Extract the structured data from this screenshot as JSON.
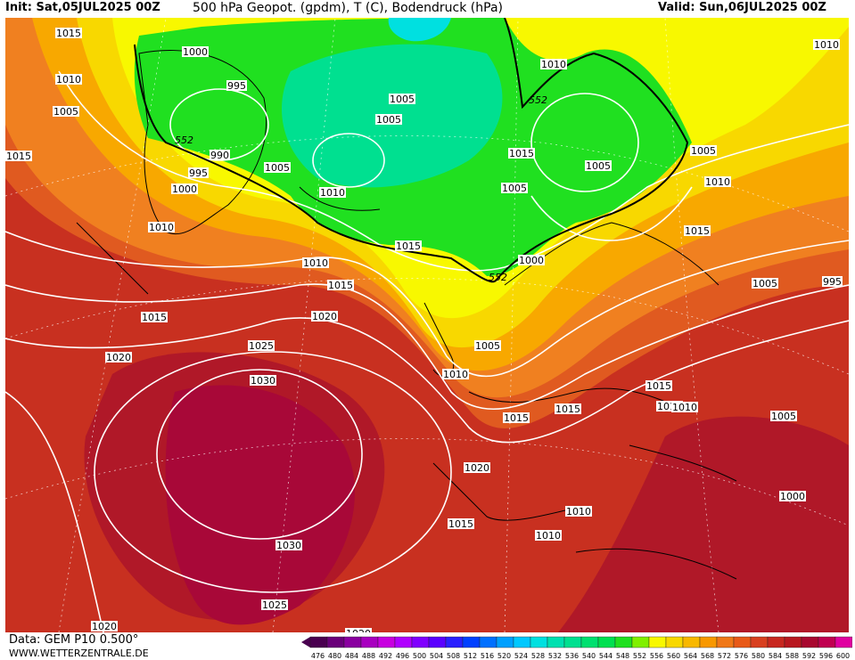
{
  "header": {
    "init": "Init: Sat,05JUL2025 00Z",
    "title": "500 hPa Geopot. (gpdm), T (C), Bodendruck (hPa)",
    "valid": "Valid: Sun,06JUL2025 00Z"
  },
  "footer": {
    "source": "Data: GEM P10 0.500°",
    "website": "WWW.WETTERZENTRALE.DE"
  },
  "colorbar": {
    "labels": [
      "476",
      "480",
      "484",
      "488",
      "492",
      "496",
      "500",
      "504",
      "508",
      "512",
      "516",
      "520",
      "524",
      "528",
      "532",
      "536",
      "540",
      "544",
      "548",
      "552",
      "556",
      "560",
      "564",
      "568",
      "572",
      "576",
      "580",
      "584",
      "588",
      "592",
      "596",
      "600"
    ],
    "colors": [
      "#4a0050",
      "#6a007a",
      "#8a00a0",
      "#a800c0",
      "#c800e0",
      "#b000ff",
      "#8000ff",
      "#5a00ff",
      "#2a20ff",
      "#0040ff",
      "#0070ff",
      "#00a0ff",
      "#00c8ff",
      "#00e0e0",
      "#00e0b0",
      "#00e090",
      "#00e070",
      "#00e050",
      "#20e020",
      "#80f000",
      "#f8f800",
      "#f8d800",
      "#f8b800",
      "#f89800",
      "#f07818",
      "#e85a18",
      "#d84020",
      "#c82820",
      "#b81820",
      "#a80830",
      "#c00050",
      "#e000a0"
    ],
    "arrow_left_color": "#4a0050",
    "arrow_right_color": "#e000a0"
  },
  "map": {
    "field_colors": {
      "green": "#20e020",
      "green_light": "#50ea40",
      "green_teal": "#00e090",
      "yellow": "#f8f800",
      "yellow_orange": "#f8d800",
      "orange": "#f8a800",
      "orange_deep": "#f08020",
      "red_orange": "#e05a20",
      "red": "#c83020",
      "dark_red": "#b01828",
      "crimson": "#a80838"
    },
    "labels_552": [
      "552",
      "552",
      "552"
    ],
    "isobar_labels": [
      "1015",
      "1010",
      "1005",
      "1015",
      "1000",
      "995",
      "990",
      "995",
      "1000",
      "1010",
      "1015",
      "1020",
      "1025",
      "1030",
      "1030",
      "1025",
      "1020",
      "1020",
      "1020",
      "1015",
      "1010",
      "1005",
      "1010",
      "1005",
      "1005",
      "1005",
      "1010",
      "1005",
      "1000",
      "1005",
      "1010",
      "1015",
      "1020",
      "1015",
      "1015",
      "1015",
      "1015",
      "1015",
      "1010",
      "1010",
      "1005",
      "1000",
      "995",
      "1005",
      "1010",
      "1015",
      "1015",
      "1010",
      "1010",
      "1005"
    ],
    "isobar_label_color": "#000000"
  }
}
